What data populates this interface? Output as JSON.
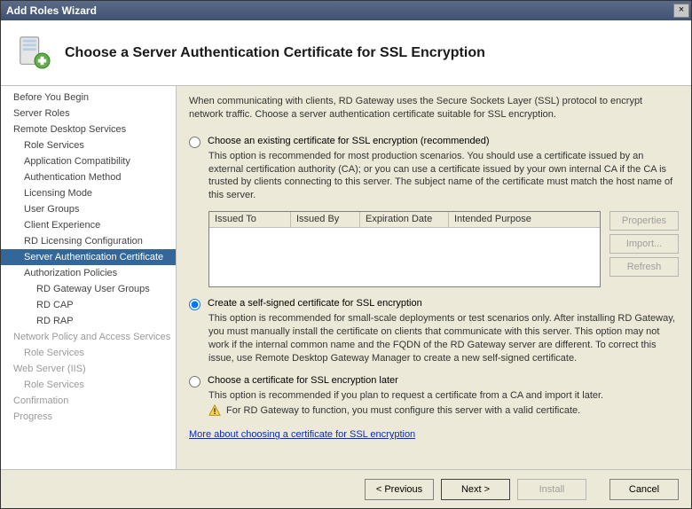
{
  "window": {
    "title": "Add Roles Wizard"
  },
  "header": {
    "heading": "Choose a Server Authentication Certificate for SSL Encryption"
  },
  "sidebar": {
    "items": [
      {
        "label": "Before You Begin",
        "level": 0,
        "disabled": false
      },
      {
        "label": "Server Roles",
        "level": 0,
        "disabled": false
      },
      {
        "label": "Remote Desktop Services",
        "level": 0,
        "disabled": false
      },
      {
        "label": "Role Services",
        "level": 1,
        "disabled": false
      },
      {
        "label": "Application Compatibility",
        "level": 1,
        "disabled": false
      },
      {
        "label": "Authentication Method",
        "level": 1,
        "disabled": false
      },
      {
        "label": "Licensing Mode",
        "level": 1,
        "disabled": false
      },
      {
        "label": "User Groups",
        "level": 1,
        "disabled": false
      },
      {
        "label": "Client Experience",
        "level": 1,
        "disabled": false
      },
      {
        "label": "RD Licensing Configuration",
        "level": 1,
        "disabled": false
      },
      {
        "label": "Server Authentication Certificate",
        "level": 1,
        "disabled": false,
        "selected": true
      },
      {
        "label": "Authorization Policies",
        "level": 1,
        "disabled": false
      },
      {
        "label": "RD Gateway User Groups",
        "level": 2,
        "disabled": false
      },
      {
        "label": "RD CAP",
        "level": 2,
        "disabled": false
      },
      {
        "label": "RD RAP",
        "level": 2,
        "disabled": false
      },
      {
        "label": "Network Policy and Access Services",
        "level": 0,
        "disabled": true
      },
      {
        "label": "Role Services",
        "level": 1,
        "disabled": true
      },
      {
        "label": "Web Server (IIS)",
        "level": 0,
        "disabled": true
      },
      {
        "label": "Role Services",
        "level": 1,
        "disabled": true
      },
      {
        "label": "Confirmation",
        "level": 0,
        "disabled": true
      },
      {
        "label": "Progress",
        "level": 0,
        "disabled": true
      }
    ]
  },
  "content": {
    "intro": "When communicating with clients, RD Gateway uses the Secure Sockets Layer (SSL) protocol to encrypt network traffic. Choose a server authentication certificate suitable for SSL encryption.",
    "opt1": {
      "title": "Choose an existing certificate for SSL encryption (recommended)",
      "body": "This option is recommended for most production scenarios. You should use a certificate issued by an external certification authority (CA); or you can use a certificate issued by your own internal CA if the CA is trusted by clients connecting to this server. The subject name of the certificate must match the host name of this server.",
      "columns": {
        "c1": "Issued To",
        "c2": "Issued By",
        "c3": "Expiration Date",
        "c4": "Intended Purpose"
      },
      "buttons": {
        "properties": "Properties",
        "import": "Import...",
        "refresh": "Refresh"
      }
    },
    "opt2": {
      "title": "Create a self-signed certificate for SSL encryption",
      "body": "This option is recommended for small-scale deployments or test scenarios only. After installing RD Gateway, you must manually install the certificate on clients that communicate with this server. This option may not work if the internal common name and the FQDN of the RD Gateway server are different. To correct this issue, use Remote Desktop Gateway Manager to create a new self-signed certificate."
    },
    "opt3": {
      "title": "Choose a certificate for SSL encryption later",
      "body": "This option is recommended if you plan to request a certificate from a CA and import it later.",
      "warning": "For RD Gateway to function, you must configure this server with a valid certificate."
    },
    "link": "More about choosing a certificate for SSL encryption",
    "selected_option": 2
  },
  "footer": {
    "previous": "< Previous",
    "next": "Next >",
    "install": "Install",
    "cancel": "Cancel"
  },
  "colors": {
    "window_bg": "#ece9d8",
    "titlebar_start": "#5a6b88",
    "titlebar_end": "#3f5272",
    "selection_bg": "#336699",
    "link": "#0a2cc1",
    "disabled_text": "#9a9a9a"
  }
}
